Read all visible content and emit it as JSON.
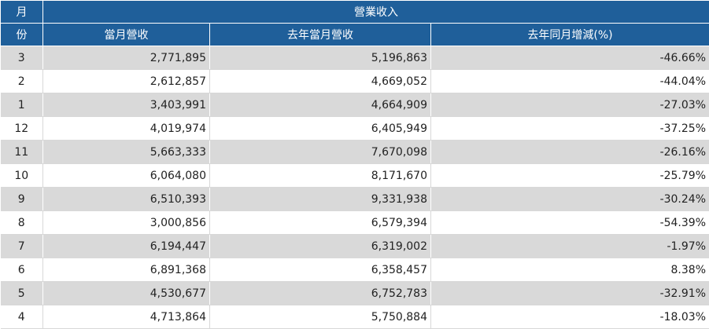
{
  "header": {
    "month_top": "月",
    "month_bottom": "份",
    "group": "營業收入",
    "col_current": "當月營收",
    "col_last_year": "去年當月營收",
    "col_yoy": "去年同月增減(%)"
  },
  "rows": [
    {
      "month": "3",
      "current": "2,771,895",
      "last_year": "5,196,863",
      "yoy": "-46.66%"
    },
    {
      "month": "2",
      "current": "2,612,857",
      "last_year": "4,669,052",
      "yoy": "-44.04%"
    },
    {
      "month": "1",
      "current": "3,403,991",
      "last_year": "4,664,909",
      "yoy": "-27.03%"
    },
    {
      "month": "12",
      "current": "4,019,974",
      "last_year": "6,405,949",
      "yoy": "-37.25%"
    },
    {
      "month": "11",
      "current": "5,663,333",
      "last_year": "7,670,098",
      "yoy": "-26.16%"
    },
    {
      "month": "10",
      "current": "6,064,080",
      "last_year": "8,171,670",
      "yoy": "-25.79%"
    },
    {
      "month": "9",
      "current": "6,510,393",
      "last_year": "9,331,938",
      "yoy": "-30.24%"
    },
    {
      "month": "8",
      "current": "3,000,856",
      "last_year": "6,579,394",
      "yoy": "-54.39%"
    },
    {
      "month": "7",
      "current": "6,194,447",
      "last_year": "6,319,002",
      "yoy": "-1.97%"
    },
    {
      "month": "6",
      "current": "6,891,368",
      "last_year": "6,358,457",
      "yoy": "8.38%"
    },
    {
      "month": "5",
      "current": "4,530,677",
      "last_year": "6,752,783",
      "yoy": "-32.91%"
    },
    {
      "month": "4",
      "current": "4,713,864",
      "last_year": "5,750,884",
      "yoy": "-18.03%"
    }
  ],
  "colors": {
    "header_bg": "#1f5f9a",
    "row_alt_bg": "#d9d9d9"
  }
}
